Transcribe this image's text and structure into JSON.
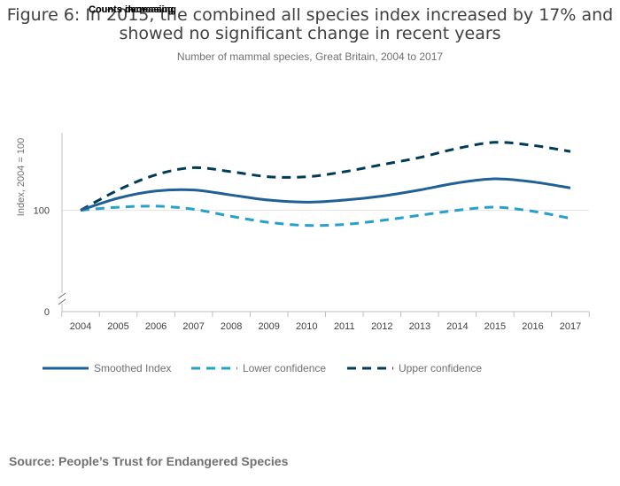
{
  "header": {
    "title_line1": "Figure 6: In 2015, the combined all species index increased by 17% and",
    "title_line2": "showed no significant change in recent years",
    "subtitle": "Number of mammal species, Great Britain, 2004 to 2017",
    "overlay_tag_1": "Counts increasing",
    "overlay_tag_2": "Counts decreasing"
  },
  "footer": {
    "source": "Source: People’s Trust for Endangered Species"
  },
  "colors": {
    "smoothed": "#206095",
    "lower": "#27a0cc",
    "upper": "#003c57",
    "axis": "#bfbfbf",
    "grid": "#e6e6e6"
  },
  "chart_data": {
    "type": "line",
    "ylabel": "Index, 2004 = 100",
    "x": [
      "2004",
      "2005",
      "2006",
      "2007",
      "2008",
      "2009",
      "2010",
      "2011",
      "2012",
      "2013",
      "2014",
      "2015",
      "2016",
      "2017"
    ],
    "y_ticks": [
      {
        "value": 0,
        "label": "0"
      },
      {
        "value": 100,
        "label": "100"
      }
    ],
    "ylim": [
      0,
      175
    ],
    "axis_break": true,
    "legend_position": "bottom-left",
    "series": [
      {
        "name": "Smoothed Index",
        "key": "smoothed",
        "dash": "solid",
        "values": [
          100,
          112,
          119,
          120,
          115,
          110,
          108,
          110,
          114,
          120,
          127,
          131,
          128,
          122
        ]
      },
      {
        "name": "Lower confidence",
        "key": "lower",
        "dash": "dashed",
        "values": [
          100,
          103,
          104,
          101,
          94,
          88,
          85,
          86,
          90,
          95,
          100,
          103,
          99,
          92
        ]
      },
      {
        "name": "Upper confidence",
        "key": "upper",
        "dash": "dashed",
        "values": [
          100,
          120,
          135,
          142,
          138,
          133,
          133,
          138,
          145,
          152,
          161,
          167,
          164,
          158
        ]
      }
    ]
  }
}
